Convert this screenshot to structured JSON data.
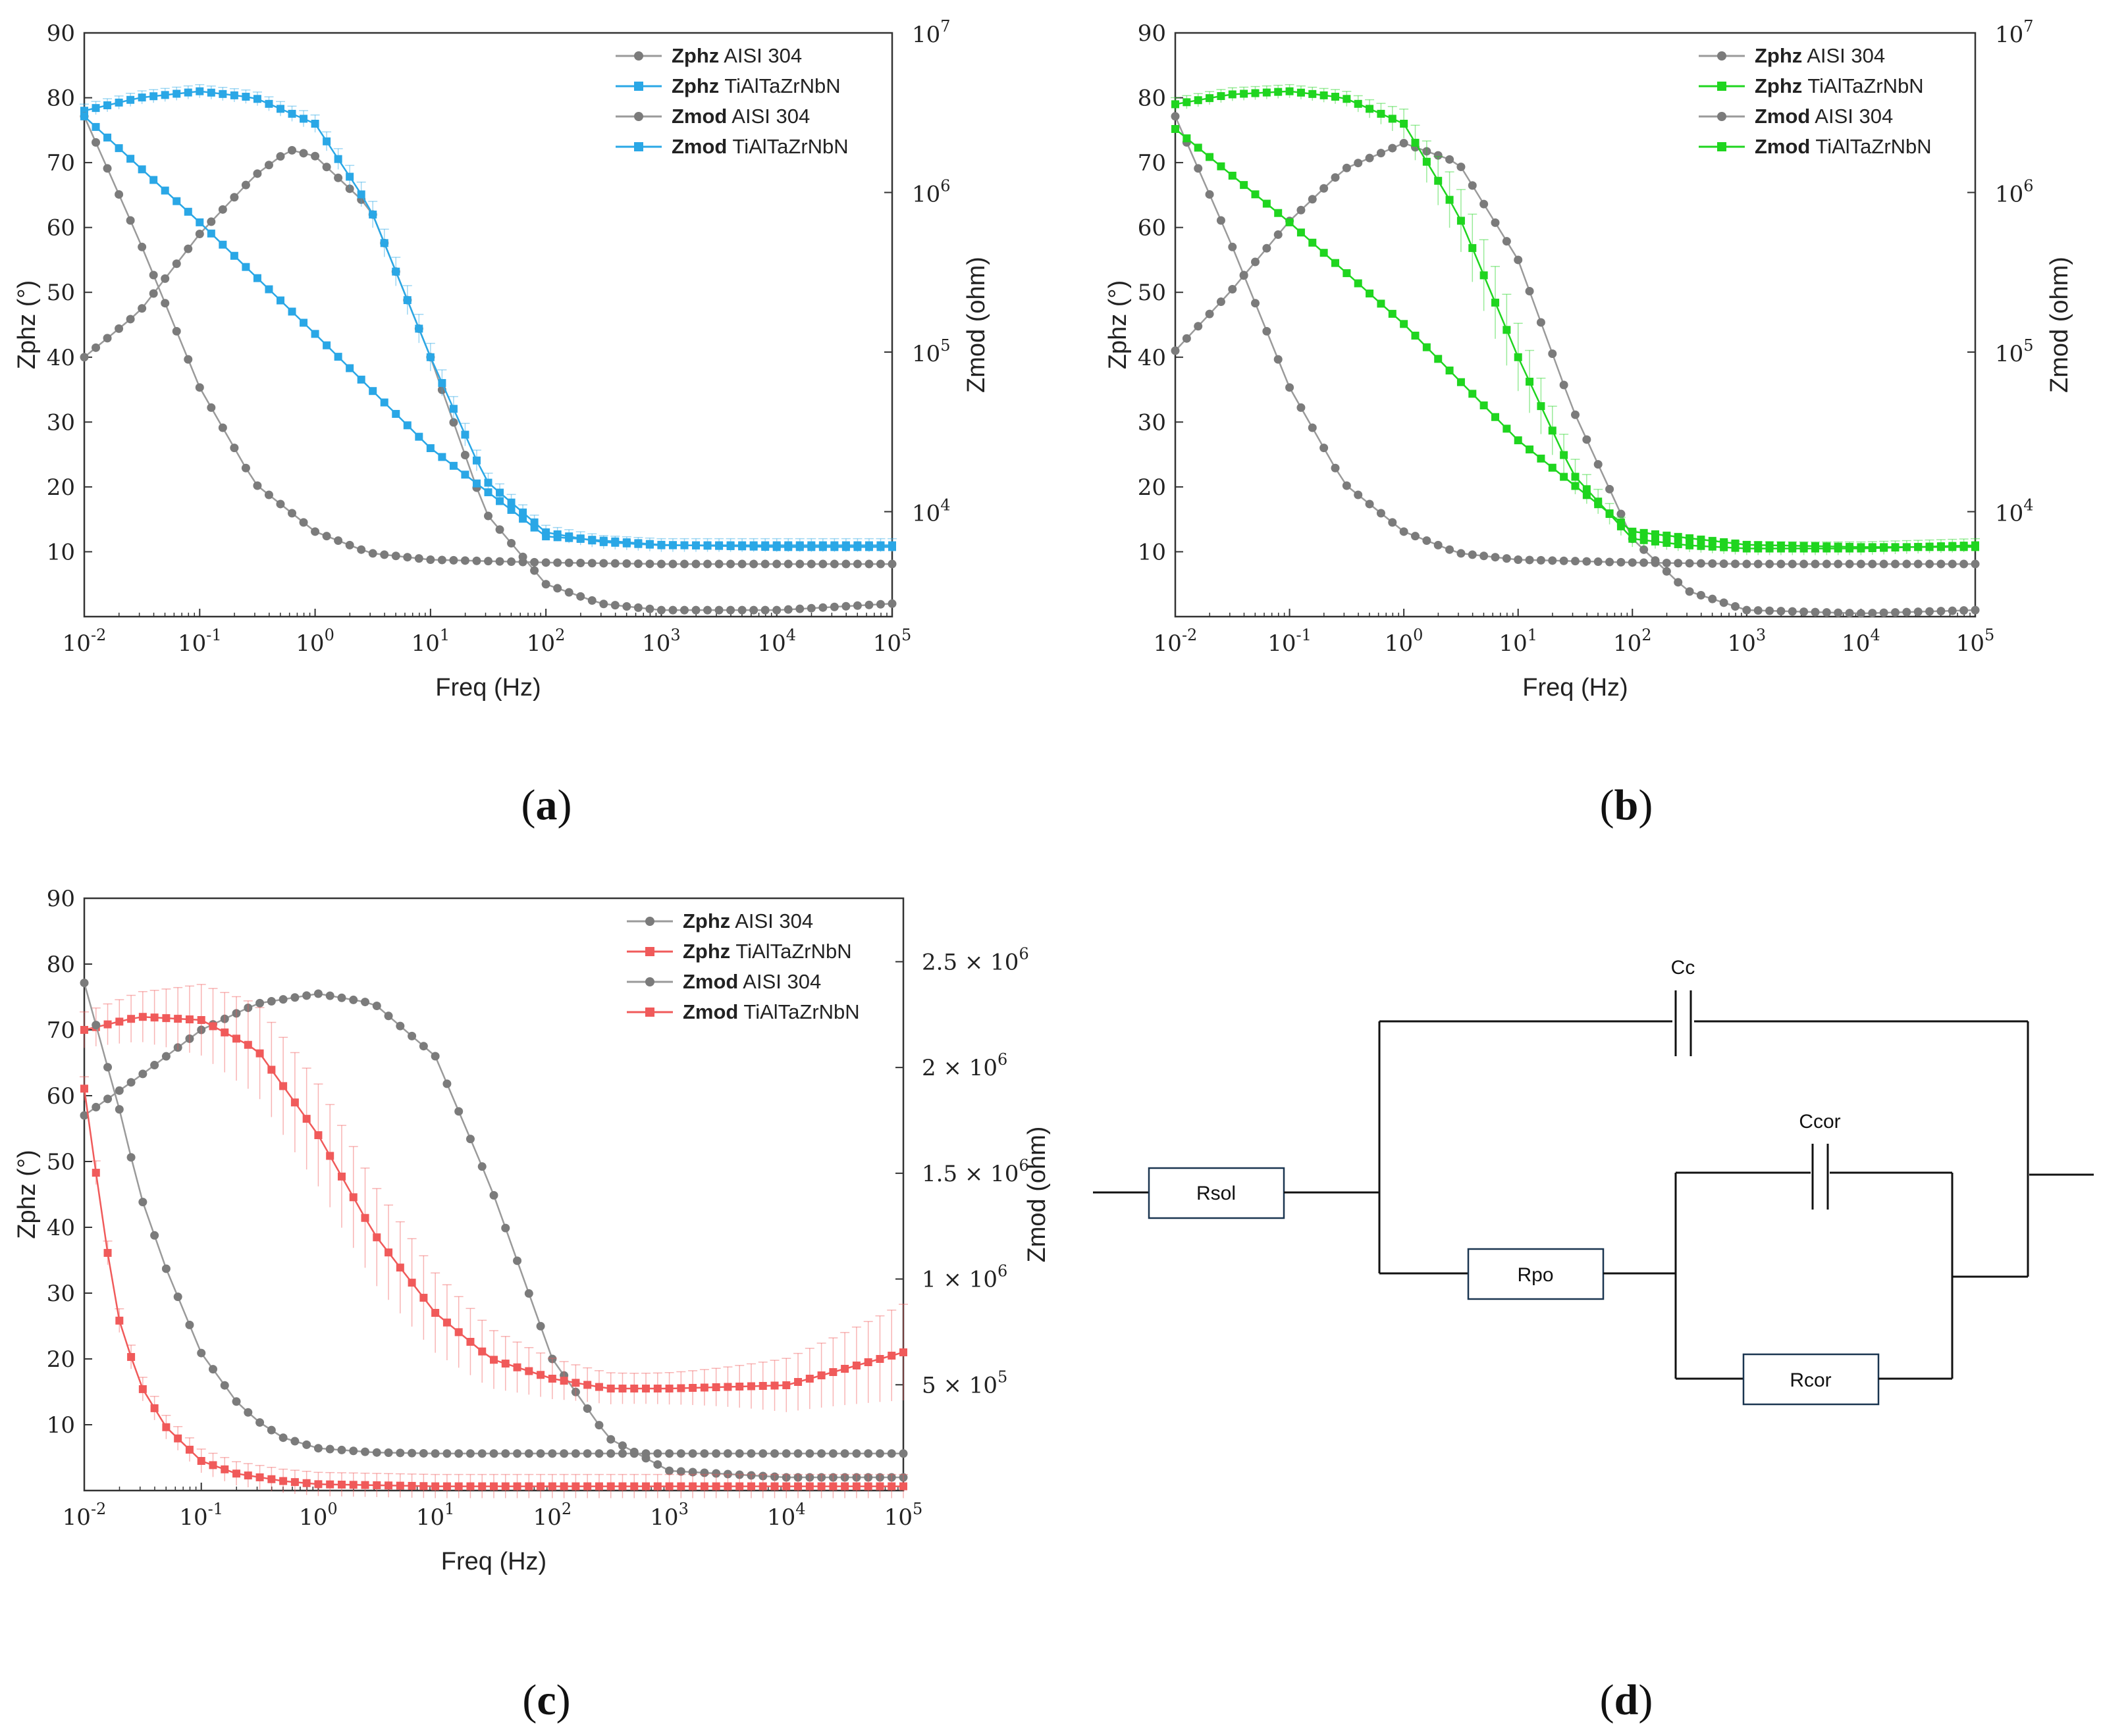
{
  "colors": {
    "gray": "#8f8f8f",
    "gray_marker": "#7b7b7b",
    "blue": "#2aa7e6",
    "green": "#1fd51f",
    "red": "#f05a5a"
  },
  "panel_labels": [
    "a",
    "b",
    "c",
    "d"
  ],
  "chart_data": [
    {
      "type": "line",
      "panel": "a",
      "xlabel": "Freq (Hz)",
      "xscale": "log",
      "xlim": [
        0.01,
        100000
      ],
      "x_tick_labels": [
        "10^-2",
        "10^-1",
        "10^0",
        "10^1",
        "10^2",
        "10^3",
        "10^4",
        "10^5"
      ],
      "ylabel": "Zphz (°)",
      "ylim": [
        0,
        90
      ],
      "y_ticks": [
        10,
        20,
        30,
        40,
        50,
        60,
        70,
        80,
        90
      ],
      "y2label": "Zmod (ohm)",
      "y2scale": "log",
      "y2lim": [
        2200,
        10000000
      ],
      "y2_tick_labels": [
        "10^4",
        "10^5",
        "10^6",
        "10^7"
      ],
      "legend_position": "top-right",
      "legend": [
        {
          "bold": "Zphz",
          "text": "AISI 304",
          "color": "gray",
          "marker": "circle"
        },
        {
          "bold": "Zphz",
          "text": "TiAlTaZrNbN",
          "color": "blue",
          "marker": "square"
        },
        {
          "bold": "Zmod",
          "text": "AISI 304",
          "color": "gray",
          "marker": "circle"
        },
        {
          "bold": "Zmod",
          "text": "TiAlTaZrNbN",
          "color": "blue",
          "marker": "square"
        }
      ],
      "series": [
        {
          "name": "Zphz AISI 304",
          "axis": "left",
          "color": "gray",
          "x": [
            0.01,
            0.03,
            0.1,
            0.3,
            0.6,
            1,
            3,
            10,
            30,
            100,
            300,
            1000,
            10000,
            100000
          ],
          "y": [
            40,
            47,
            59,
            68,
            72,
            71,
            63,
            40,
            16,
            5,
            2,
            1,
            1,
            2
          ]
        },
        {
          "name": "Zphz TiAlTaZrNbN",
          "axis": "left",
          "color": "blue",
          "errorbars": true,
          "x": [
            0.01,
            0.03,
            0.1,
            0.3,
            1,
            3,
            10,
            30,
            100,
            300,
            1000,
            10000,
            100000
          ],
          "y": [
            78,
            80,
            81,
            80,
            76,
            63,
            40,
            21,
            13,
            11.5,
            11,
            11,
            11
          ]
        },
        {
          "name": "Zmod AISI 304",
          "axis": "right",
          "color": "gray",
          "x": [
            0.01,
            0.03,
            0.1,
            0.3,
            1,
            3,
            10,
            100,
            1000,
            10000,
            100000
          ],
          "y": [
            3000000,
            500000,
            60000,
            15000,
            7500,
            5500,
            5000,
            4800,
            4700,
            4700,
            4700
          ]
        },
        {
          "name": "Zmod TiAlTaZrNbN",
          "axis": "right",
          "color": "blue",
          "x": [
            0.01,
            0.1,
            1,
            10,
            100,
            1000,
            10000,
            100000
          ],
          "y": [
            3000000,
            650000,
            130000,
            25000,
            7000,
            6200,
            6000,
            6000
          ]
        }
      ]
    },
    {
      "type": "line",
      "panel": "b",
      "xlabel": "Freq (Hz)",
      "xscale": "log",
      "xlim": [
        0.01,
        100000
      ],
      "x_tick_labels": [
        "10^-2",
        "10^-1",
        "10^0",
        "10^1",
        "10^2",
        "10^3",
        "10^4",
        "10^5"
      ],
      "ylabel": "Zphz (°)",
      "ylim": [
        0,
        90
      ],
      "y_ticks": [
        10,
        20,
        30,
        40,
        50,
        60,
        70,
        80,
        90
      ],
      "y2label": "Zmod (ohm)",
      "y2scale": "log",
      "y2lim": [
        2200,
        10000000
      ],
      "y2_tick_labels": [
        "10^4",
        "10^5",
        "10^6",
        "10^7"
      ],
      "legend_position": "top-right",
      "legend": [
        {
          "bold": "Zphz",
          "text": "AISI 304",
          "color": "gray",
          "marker": "circle"
        },
        {
          "bold": "Zphz",
          "text": "TiAlTaZrNbN",
          "color": "green",
          "marker": "square"
        },
        {
          "bold": "Zmod",
          "text": "AISI 304",
          "color": "gray",
          "marker": "circle"
        },
        {
          "bold": "Zmod",
          "text": "TiAlTaZrNbN",
          "color": "green",
          "marker": "square"
        }
      ],
      "series": [
        {
          "name": "Zphz AISI 304",
          "axis": "left",
          "color": "gray",
          "x": [
            0.01,
            0.03,
            0.1,
            0.3,
            1,
            3,
            10,
            30,
            100,
            300,
            1000,
            10000,
            100000
          ],
          "y": [
            41,
            50,
            61,
            69,
            73,
            70,
            55,
            32,
            12,
            4,
            1,
            0.5,
            1
          ]
        },
        {
          "name": "Zphz TiAlTaZrNbN",
          "axis": "left",
          "color": "green",
          "errorbars": true,
          "x": [
            0.01,
            0.03,
            0.1,
            0.3,
            1,
            3,
            10,
            30,
            100,
            300,
            1000,
            10000,
            100000
          ],
          "y": [
            79,
            80.5,
            81,
            80,
            76,
            62,
            40,
            22,
            12,
            11,
            10.5,
            10.5,
            11
          ]
        },
        {
          "name": "Zmod AISI 304",
          "axis": "right",
          "color": "gray",
          "x": [
            0.01,
            0.03,
            0.1,
            0.3,
            1,
            3,
            10,
            100,
            1000,
            10000,
            100000
          ],
          "y": [
            3000000,
            500000,
            60000,
            15000,
            7500,
            5500,
            5000,
            4800,
            4700,
            4700,
            4700
          ]
        },
        {
          "name": "Zmod TiAlTaZrNbN",
          "axis": "right",
          "color": "green",
          "x": [
            0.01,
            0.1,
            1,
            10,
            100,
            1000,
            10000,
            100000
          ],
          "y": [
            2500000,
            650000,
            150000,
            28000,
            7500,
            6200,
            6000,
            6000
          ]
        }
      ]
    },
    {
      "type": "line",
      "panel": "c",
      "xlabel": "Freq (Hz)",
      "xscale": "log",
      "xlim": [
        0.01,
        100000
      ],
      "x_tick_labels": [
        "10^-2",
        "10^-1",
        "10^0",
        "10^1",
        "10^2",
        "10^3",
        "10^4",
        "10^5"
      ],
      "ylabel": "Zphz (°)",
      "ylim": [
        0,
        90
      ],
      "y_ticks": [
        10,
        20,
        30,
        40,
        50,
        60,
        70,
        80,
        90
      ],
      "y2label": "Zmod (ohm)",
      "y2scale": "linear",
      "y2lim": [
        0,
        2800000
      ],
      "y2_tick_labels": [
        "5 × 10^5",
        "1 × 10^6",
        "1.5 × 10^6",
        "2 × 10^6",
        "2.5 × 10^6"
      ],
      "y2_ticks": [
        500000,
        1000000,
        1500000,
        2000000,
        2500000
      ],
      "legend_position": "top-right",
      "legend": [
        {
          "bold": "Zphz",
          "text": "AISI 304",
          "color": "gray",
          "marker": "circle"
        },
        {
          "bold": "Zphz",
          "text": "TiAlTaZrNbN",
          "color": "red",
          "marker": "square"
        },
        {
          "bold": "Zmod",
          "text": "AISI 304",
          "color": "gray",
          "marker": "circle"
        },
        {
          "bold": "Zmod",
          "text": "TiAlTaZrNbN",
          "color": "red",
          "marker": "square"
        }
      ],
      "series": [
        {
          "name": "Zphz AISI 304",
          "axis": "left",
          "color": "gray",
          "x": [
            0.01,
            0.03,
            0.1,
            0.3,
            1,
            3,
            10,
            30,
            100,
            300,
            1000,
            10000,
            100000
          ],
          "y": [
            57,
            63,
            70,
            74,
            75.5,
            74,
            66,
            46,
            20,
            8,
            3,
            2,
            2
          ]
        },
        {
          "name": "Zphz TiAlTaZrNbN",
          "axis": "left",
          "color": "red",
          "errorbars": true,
          "x": [
            0.01,
            0.03,
            0.1,
            0.3,
            1,
            3,
            10,
            30,
            100,
            300,
            1000,
            10000,
            100000
          ],
          "y": [
            70,
            72,
            71.5,
            67,
            54,
            39,
            27,
            20,
            17,
            15.5,
            15.5,
            16,
            21
          ]
        },
        {
          "name": "Zmod AISI 304",
          "axis": "right",
          "color": "gray",
          "x": [
            0.01,
            0.02,
            0.03,
            0.05,
            0.1,
            0.2,
            0.3,
            0.5,
            1,
            3,
            10,
            100,
            1000,
            10000,
            100000
          ],
          "y": [
            2400000,
            1800000,
            1400000,
            1050000,
            650000,
            420000,
            330000,
            250000,
            200000,
            180000,
            175000,
            175000,
            175000,
            175000,
            175000
          ]
        },
        {
          "name": "Zmod TiAlTaZrNbN",
          "axis": "right",
          "color": "red",
          "errorbars": true,
          "x": [
            0.01,
            0.015,
            0.02,
            0.03,
            0.05,
            0.1,
            0.2,
            0.5,
            1,
            10,
            100,
            1000,
            10000,
            100000
          ],
          "y": [
            1900000,
            1200000,
            800000,
            500000,
            300000,
            140000,
            80000,
            45000,
            30000,
            20000,
            20000,
            20000,
            20000,
            20000
          ]
        }
      ]
    }
  ],
  "circuit": {
    "components": [
      "Cc",
      "Ccor",
      "Rsol",
      "Rpo",
      "Rcor"
    ]
  }
}
